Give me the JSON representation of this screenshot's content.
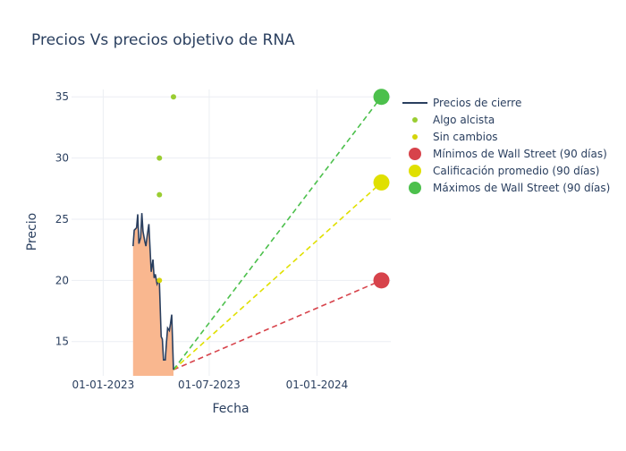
{
  "chart_data": {
    "type": "line",
    "title": "Precios Vs precios objetivo de RNA",
    "xlabel": "Fecha",
    "ylabel": "Precio",
    "x_type": "date",
    "xlim": [
      "2022-11-08",
      "2024-05-06"
    ],
    "ylim": [
      12.2,
      35.6
    ],
    "x_ticks": [
      {
        "date": "2023-01-01",
        "label": "01-01-2023"
      },
      {
        "date": "2023-07-01",
        "label": "01-07-2023"
      },
      {
        "date": "2024-01-01",
        "label": "01-01-2024"
      }
    ],
    "y_ticks": [
      15,
      20,
      25,
      30,
      35
    ],
    "grid": true,
    "legend_position": "top-right",
    "colors": {
      "price_line": "#2a3f5f",
      "price_fill": "#f9b78f",
      "algo_alcista": "#9acd32",
      "sin_cambios": "#d4d40a",
      "minimos": "#d7434b",
      "promedio": "#e0e000",
      "maximos": "#4cc04c",
      "axis_text": "#2a3f5f",
      "grid": "#ebeef3"
    },
    "series": [
      {
        "name": "Precios de cierre",
        "kind": "line",
        "points": [
          [
            "2023-02-21",
            22.8
          ],
          [
            "2023-02-23",
            24.1
          ],
          [
            "2023-02-27",
            24.3
          ],
          [
            "2023-03-01",
            25.4
          ],
          [
            "2023-03-03",
            23.0
          ],
          [
            "2023-03-06",
            23.5
          ],
          [
            "2023-03-08",
            25.5
          ],
          [
            "2023-03-10",
            24.0
          ],
          [
            "2023-03-13",
            23.2
          ],
          [
            "2023-03-15",
            22.8
          ],
          [
            "2023-03-17",
            23.6
          ],
          [
            "2023-03-20",
            24.6
          ],
          [
            "2023-03-22",
            22.6
          ],
          [
            "2023-03-24",
            20.7
          ],
          [
            "2023-03-27",
            21.7
          ],
          [
            "2023-03-29",
            20.2
          ],
          [
            "2023-03-31",
            20.5
          ],
          [
            "2023-04-03",
            19.7
          ],
          [
            "2023-04-05",
            19.9
          ],
          [
            "2023-04-07",
            19.8
          ],
          [
            "2023-04-10",
            15.4
          ],
          [
            "2023-04-12",
            15.2
          ],
          [
            "2023-04-14",
            13.5
          ],
          [
            "2023-04-17",
            13.5
          ],
          [
            "2023-04-19",
            14.9
          ],
          [
            "2023-04-21",
            16.1
          ],
          [
            "2023-04-24",
            15.9
          ],
          [
            "2023-04-26",
            16.5
          ],
          [
            "2023-04-28",
            17.2
          ],
          [
            "2023-05-01",
            12.7
          ]
        ]
      },
      {
        "name": "Algo alcista",
        "kind": "scatter",
        "points": [
          [
            "2023-04-07",
            30
          ],
          [
            "2023-04-07",
            27
          ],
          [
            "2023-05-01",
            35
          ]
        ]
      },
      {
        "name": "Sin cambios",
        "kind": "scatter",
        "points": [
          [
            "2023-04-07",
            20
          ]
        ]
      },
      {
        "name": "Mínimos de Wall Street (90 días)",
        "kind": "target",
        "start": [
          "2023-05-01",
          12.7
        ],
        "end": [
          "2024-04-20",
          20
        ]
      },
      {
        "name": "Calificación promedio (90 días)",
        "kind": "target",
        "start": [
          "2023-05-01",
          12.7
        ],
        "end": [
          "2024-04-20",
          28
        ]
      },
      {
        "name": "Máximos de Wall Street (90 días)",
        "kind": "target",
        "start": [
          "2023-05-01",
          12.7
        ],
        "end": [
          "2024-04-20",
          35
        ]
      }
    ]
  }
}
